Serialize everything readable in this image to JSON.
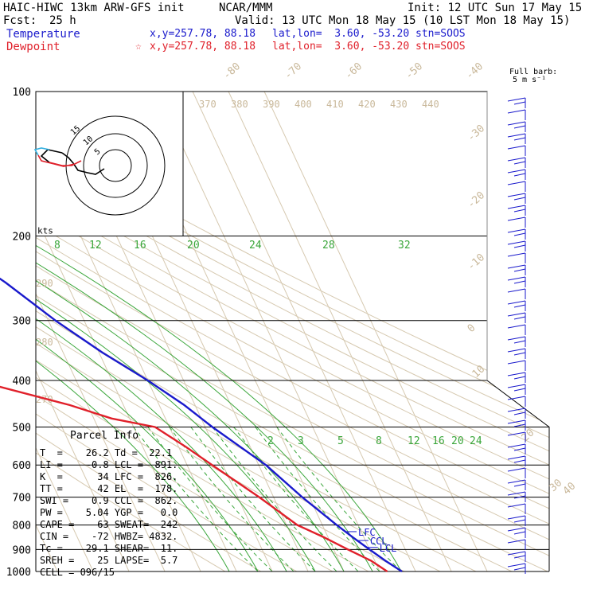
{
  "header": {
    "model": "HAIC-HIWC 13km ARW-GFS init",
    "org": "NCAR/MMM",
    "init": "Init: 12 UTC Sun 17 May 15",
    "fcst_label": "Fcst:",
    "fcst_value": "25 h",
    "valid": "Valid: 13 UTC Mon 18 May 15 (10 LST Mon 18 May 15)",
    "temp_label": "Temperature",
    "temp_xy": "x,y=257.78, 88.18",
    "temp_latlon": "lat,lon=  3.60, -53.20",
    "temp_stn": "stn=SOOS",
    "dew_label": "Dewpoint",
    "dew_star": "☆",
    "dew_xy": "x,y=257.78, 88.18",
    "dew_latlon": "lat,lon=  3.60, -53.20",
    "dew_stn": "stn=SOOS"
  },
  "barb_legend": {
    "line1": "Full barb:",
    "line2": "5 m s⁻¹"
  },
  "hodograph": {
    "units": "kts",
    "rings": [
      "5",
      "10",
      "15"
    ]
  },
  "parcel_info": {
    "title": "Parcel Info",
    "rows": [
      "T  =    26.2 Td =  22.1",
      "LI =    -0.8 LCL =  891.",
      "K  =      34 LFC =  826.",
      "TT =      42 EL  =  178.",
      "SWI =    0.9 CCL =  862.",
      "PW =    5.04 YGP =   0.0",
      "CAPE =    63 SWEAT=  242",
      "CIN =    -72 HWBZ= 4832.",
      "Tc =    29.1 SHEAR=  11.",
      "SREH =    25 LAPSE=  5.7",
      "CELL = 096/15"
    ]
  },
  "chart_data": {
    "type": "line",
    "pressure_levels": [
      100,
      200,
      300,
      400,
      500,
      600,
      700,
      800,
      900,
      1000
    ],
    "pressure_tick_labels": [
      "100",
      "200",
      "300",
      "400",
      "500",
      "600",
      "700",
      "800",
      "900",
      "1000"
    ],
    "isotherm_labels": [
      "-80",
      "-70",
      "-60",
      "-50",
      "-40",
      "-30",
      "-20",
      "-10",
      "0",
      "10",
      "20",
      "30",
      "40"
    ],
    "theta_labels_top": [
      "370",
      "380",
      "390",
      "400",
      "410",
      "420",
      "430",
      "440"
    ],
    "theta_labels_left": [
      "290",
      "280",
      "270"
    ],
    "mixing_ratio_labels_upper": [
      "8",
      "12",
      "16",
      "20",
      "24",
      "28",
      "32"
    ],
    "mixing_ratio_labels_lower": [
      "2",
      "3",
      "5",
      "8",
      "12",
      "16",
      "20",
      "24"
    ],
    "series": [
      {
        "name": "Temperature",
        "color": "#1a1acc",
        "p": [
          100,
          120,
          150,
          180,
          200,
          250,
          300,
          350,
          400,
          450,
          500,
          600,
          700,
          800,
          850,
          900,
          950,
          1000
        ],
        "t": [
          -83,
          -80,
          -73,
          -65,
          -60,
          -47,
          -38,
          -29,
          -20,
          -13,
          -8,
          2,
          8,
          14,
          17,
          20,
          23,
          26.2
        ]
      },
      {
        "name": "Dewpoint",
        "color": "#e0202a",
        "p": [
          100,
          120,
          150,
          180,
          200,
          220,
          250,
          270,
          300,
          330,
          350,
          380,
          400,
          450,
          480,
          500,
          550,
          600,
          700,
          800,
          850,
          900,
          950,
          1000
        ],
        "td": [
          -83,
          -88,
          -92,
          -91,
          -88,
          -84,
          -87,
          -91,
          -83,
          -72,
          -70,
          -73,
          -68,
          -45,
          -35,
          -24,
          -18,
          -13,
          -4,
          3,
          9,
          14,
          19,
          22.1
        ]
      }
    ],
    "parcel_levels": [
      {
        "label": "EL",
        "p": 178
      },
      {
        "label": "LFC",
        "p": 826
      },
      {
        "label": "CCL",
        "p": 862
      },
      {
        "label": "LCL",
        "p": 891
      }
    ]
  }
}
